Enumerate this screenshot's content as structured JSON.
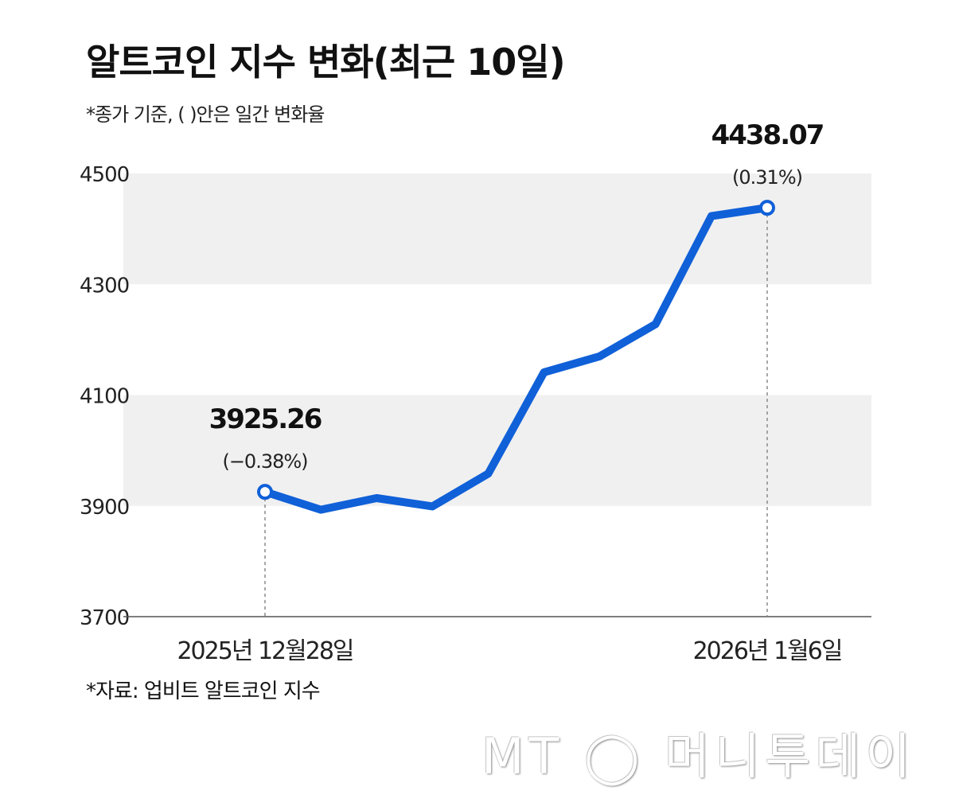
{
  "chart_data": {
    "type": "line",
    "title": "알트코인 지수 변화(최근 10일)",
    "subtitle": "*종가 기준, ( )안은 일간 변화율",
    "source": "*자료: 업비트 알트코인 지수",
    "watermark": "MT 머니투데이",
    "x_tick_labels": [
      "2025년 12월28일",
      "2026년 1월6일"
    ],
    "y_ticks": [
      3700,
      3900,
      4100,
      4300,
      4500
    ],
    "ylim": [
      3700,
      4500
    ],
    "grid": "alternating horizontal bands",
    "values": [
      3925.26,
      3893,
      3914,
      3899,
      3958,
      4141,
      4170,
      4228,
      4423,
      4438.07
    ],
    "annotations": [
      {
        "index": 0,
        "value": "3925.26",
        "change": "(−0.38%)"
      },
      {
        "index": 9,
        "value": "4438.07",
        "change": "(0.31%)"
      }
    ],
    "colors": {
      "line": "#1060d8",
      "band": "#f0f0f0"
    }
  }
}
